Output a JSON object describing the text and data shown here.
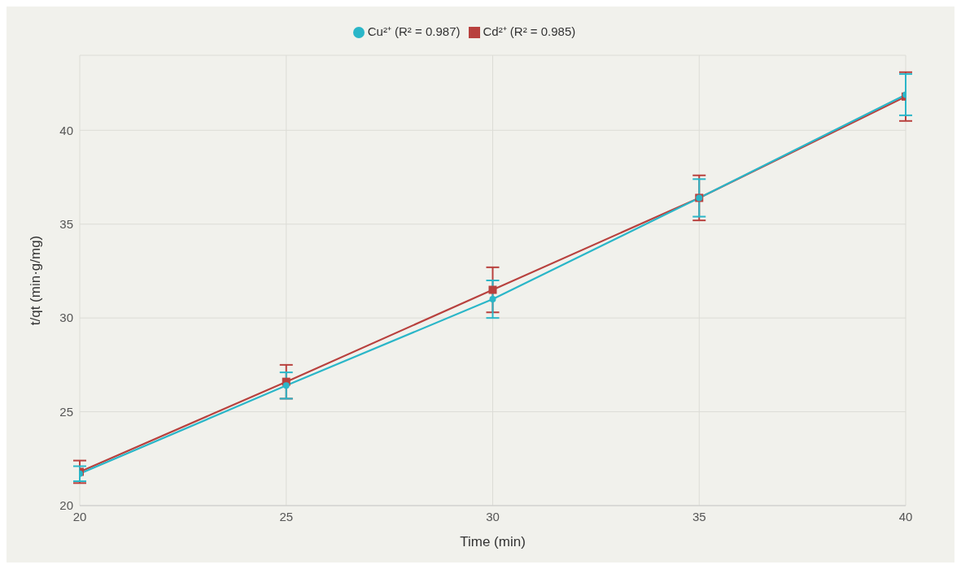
{
  "chart_data": {
    "type": "line",
    "xlabel": "Time (min)",
    "ylabel": "t/qt (min·g/mg)",
    "x": [
      20,
      25,
      30,
      35,
      40
    ],
    "series": [
      {
        "name": "Cu²⁺ (R² = 0.987)",
        "color": "#2ab6c8",
        "marker": "circle",
        "values": [
          21.7,
          26.4,
          31.0,
          36.4,
          41.9
        ],
        "errors": [
          0.4,
          0.7,
          1.0,
          1.0,
          1.1
        ]
      },
      {
        "name": "Cd²⁺ (R² = 0.985)",
        "color": "#b8413e",
        "marker": "square",
        "values": [
          21.8,
          26.6,
          31.5,
          36.4,
          41.8
        ],
        "errors": [
          0.6,
          0.9,
          1.2,
          1.2,
          1.3
        ]
      }
    ],
    "xlim": [
      20,
      40
    ],
    "xticks": [
      20,
      25,
      30,
      35,
      40
    ],
    "ylim": [
      20,
      44
    ],
    "yticks": [
      20,
      25,
      30,
      35,
      40
    ],
    "grid": true,
    "legend": "top",
    "line_style": "solid"
  }
}
